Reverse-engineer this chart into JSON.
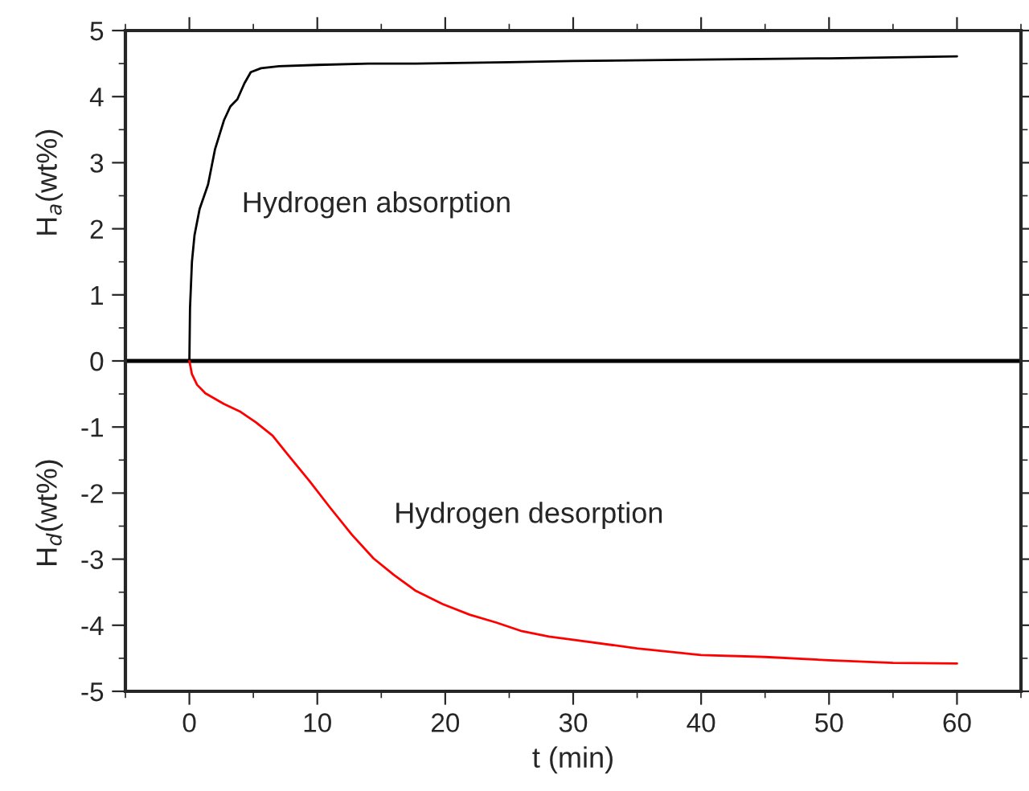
{
  "chart_data": {
    "type": "line",
    "xlabel": "t (min)",
    "ylabel": "H$_{a}$(wt%)",
    "annotations": [
      "Hydrogen absorption",
      "Hydrogen desorption",
      "H$_{d}$(wt%)"
    ],
    "xlim": [
      -5,
      65
    ],
    "ylim": [
      -5,
      5
    ],
    "xticks": [
      0,
      10,
      20,
      30,
      40,
      50,
      60
    ],
    "yticks": [
      -5,
      -4,
      -3,
      -2,
      -1,
      0,
      1,
      2,
      3,
      4,
      5
    ],
    "ref_lines": [
      {
        "axis": "y",
        "value": 0,
        "color": "#000000"
      }
    ],
    "grid": false,
    "legend": false,
    "marker": "none",
    "line_style": "solid",
    "series": [
      {
        "color": "#000000",
        "x": [
          0,
          0.05,
          0.2,
          0.4,
          0.8,
          1.46,
          2.0,
          2.7,
          3.2,
          3.75,
          4.3,
          4.8,
          5.6,
          7,
          10,
          14,
          17.7,
          25,
          30,
          40,
          50,
          60
        ],
        "values": [
          0,
          0.8,
          1.5,
          1.9,
          2.3,
          2.67,
          3.2,
          3.64,
          3.85,
          3.96,
          4.2,
          4.37,
          4.43,
          4.46,
          4.48,
          4.5,
          4.5,
          4.52,
          4.54,
          4.56,
          4.58,
          4.61
        ]
      },
      {
        "color": "#ff0000",
        "x": [
          0,
          0.2,
          0.6,
          1.25,
          2.7,
          4.0,
          5.2,
          6.5,
          7.7,
          9.4,
          11,
          12.7,
          14.4,
          16,
          17.7,
          19.8,
          21.9,
          24,
          26,
          28.1,
          30,
          35,
          40,
          45,
          50,
          55,
          60
        ],
        "values": [
          0,
          -0.2,
          -0.36,
          -0.49,
          -0.65,
          -0.77,
          -0.93,
          -1.13,
          -1.42,
          -1.82,
          -2.22,
          -2.63,
          -2.99,
          -3.24,
          -3.48,
          -3.68,
          -3.84,
          -3.96,
          -4.09,
          -4.17,
          -4.22,
          -4.35,
          -4.45,
          -4.48,
          -4.53,
          -4.57,
          -4.58
        ]
      }
    ]
  }
}
